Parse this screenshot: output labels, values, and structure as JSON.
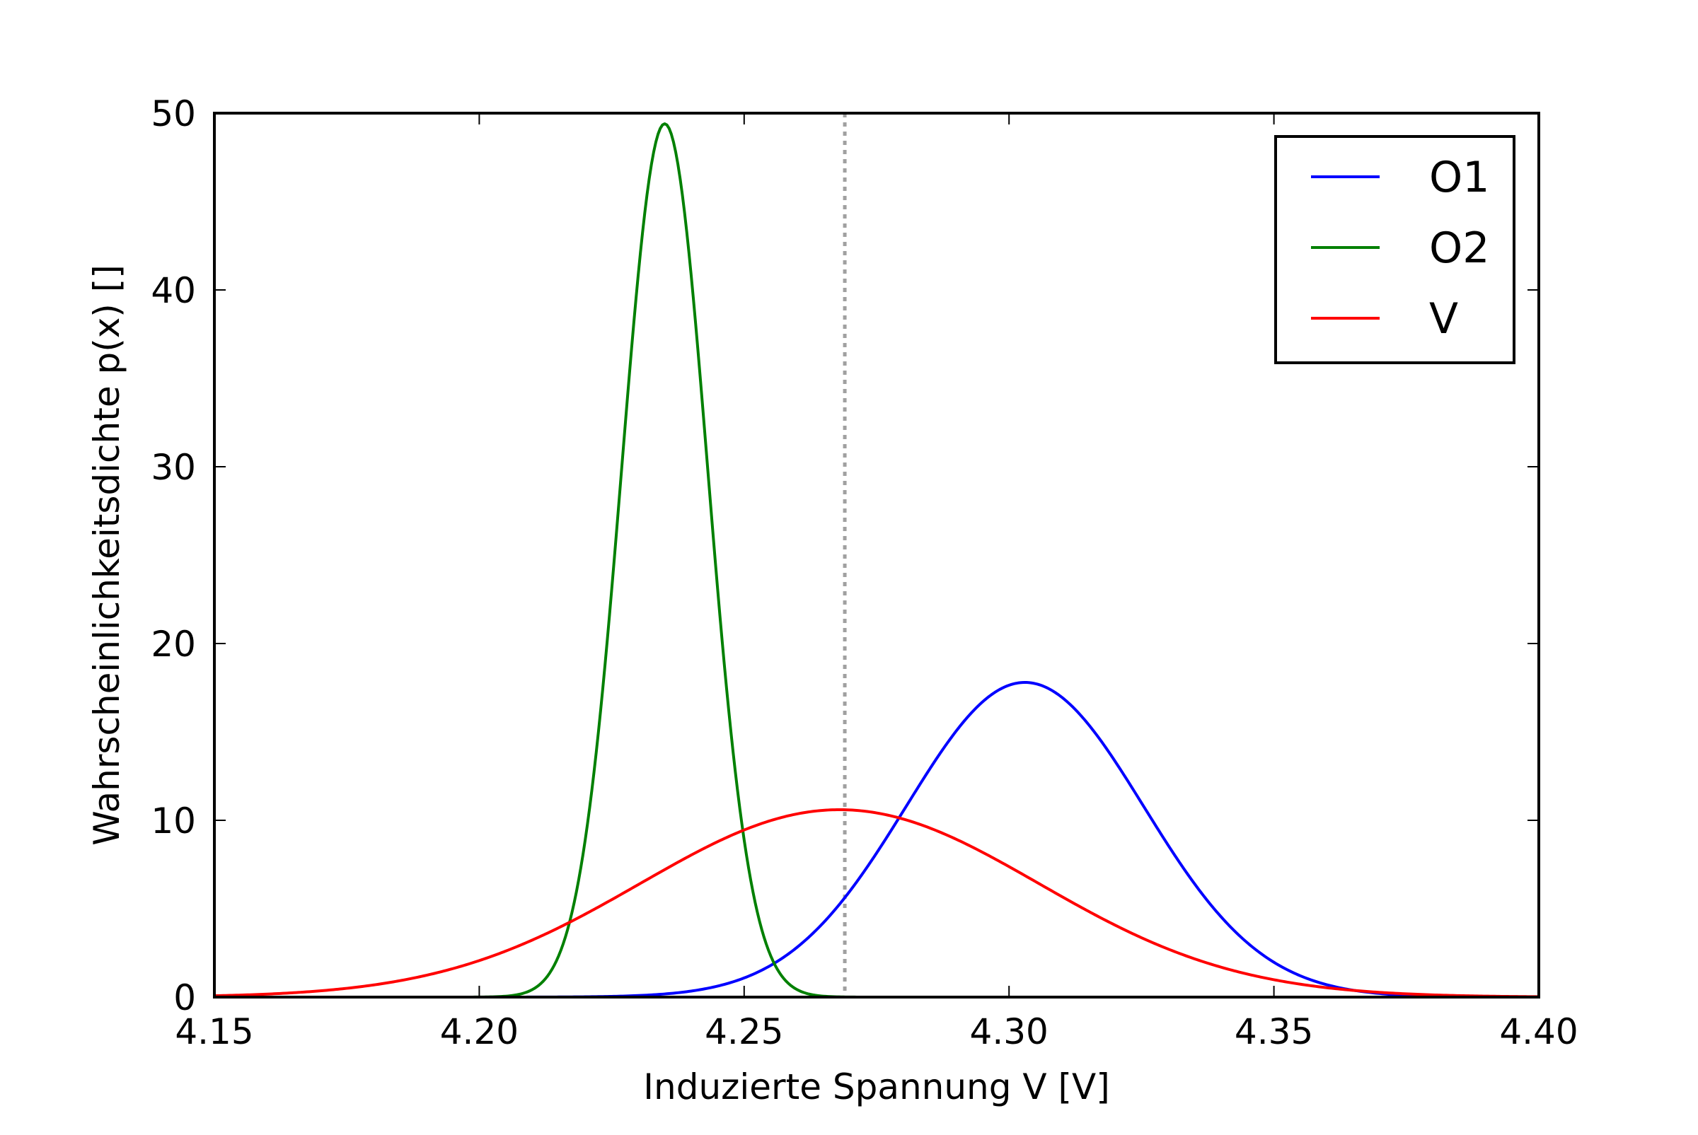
{
  "chart_data": {
    "type": "line",
    "title": "",
    "xlabel": "Induzierte Spannung V [V]",
    "ylabel": "Wahrscheinlichkeitsdichte p(x) []",
    "xlim": [
      4.15,
      4.4
    ],
    "ylim": [
      0,
      50
    ],
    "xticks": [
      4.15,
      4.2,
      4.25,
      4.3,
      4.35,
      4.4
    ],
    "xtick_labels": [
      "4.15",
      "4.20",
      "4.25",
      "4.30",
      "4.35",
      "4.40"
    ],
    "yticks": [
      0,
      10,
      20,
      30,
      40,
      50
    ],
    "ytick_labels": [
      "0",
      "10",
      "20",
      "30",
      "40",
      "50"
    ],
    "grid": false,
    "legend_position": "top-right",
    "series": [
      {
        "name": "O1",
        "color": "#0000ff",
        "distribution": "normal",
        "mean": 4.303,
        "std": 0.0224,
        "peak": 17.8
      },
      {
        "name": "O2",
        "color": "#008000",
        "distribution": "normal",
        "mean": 4.235,
        "std": 0.0081,
        "peak": 49.4
      },
      {
        "name": "V",
        "color": "#ff0000",
        "distribution": "normal",
        "mean": 4.268,
        "std": 0.0376,
        "peak": 10.6
      }
    ],
    "reference_lines": [
      {
        "orientation": "vertical",
        "x": 4.269,
        "style": "dotted",
        "color": "#a0a0a0"
      }
    ]
  }
}
